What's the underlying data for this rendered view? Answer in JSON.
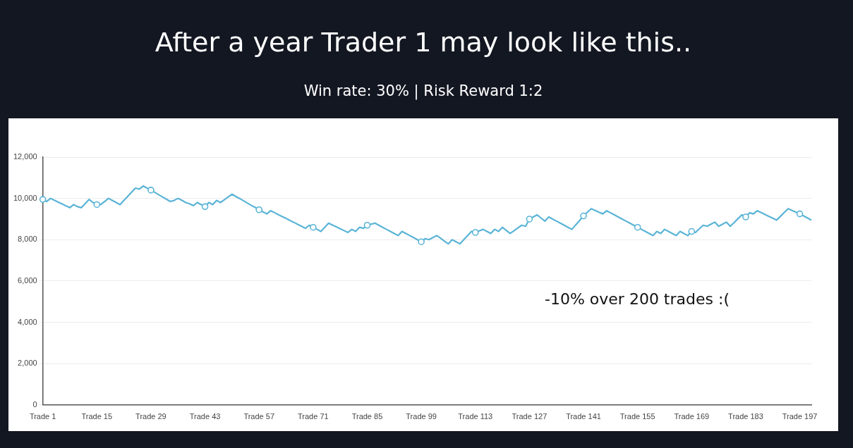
{
  "chart_data": {
    "type": "line",
    "title": "After a year Trader 1 may look like this..",
    "subtitle": "Win rate: 30% | Risk Reward 1:2",
    "annotations": [
      "-10% over 200 trades :("
    ],
    "categories": [
      "Trade 1",
      null,
      null,
      null,
      null,
      null,
      null,
      null,
      null,
      null,
      null,
      null,
      null,
      null,
      "Trade 15",
      null,
      null,
      null,
      null,
      null,
      null,
      null,
      null,
      null,
      null,
      null,
      null,
      null,
      "Trade 29",
      null,
      null,
      null,
      null,
      null,
      null,
      null,
      null,
      null,
      null,
      null,
      null,
      null,
      "Trade 43",
      null,
      null,
      null,
      null,
      null,
      null,
      null,
      null,
      null,
      null,
      null,
      null,
      null,
      "Trade 57",
      null,
      null,
      null,
      null,
      null,
      null,
      null,
      null,
      null,
      null,
      null,
      null,
      null,
      "Trade 71",
      null,
      null,
      null,
      null,
      null,
      null,
      null,
      null,
      null,
      null,
      null,
      null,
      null,
      "Trade 85",
      null,
      null,
      null,
      null,
      null,
      null,
      null,
      null,
      null,
      null,
      null,
      null,
      null,
      "Trade 99",
      null,
      null,
      null,
      null,
      null,
      null,
      null,
      null,
      null,
      null,
      null,
      null,
      null,
      "Trade 113",
      null,
      null,
      null,
      null,
      null,
      null,
      null,
      null,
      null,
      null,
      null,
      null,
      null,
      "Trade 127",
      null,
      null,
      null,
      null,
      null,
      null,
      null,
      null,
      null,
      null,
      null,
      null,
      null,
      "Trade 141",
      null,
      null,
      null,
      null,
      null,
      null,
      null,
      null,
      null,
      null,
      null,
      null,
      null,
      "Trade 155",
      null,
      null,
      null,
      null,
      null,
      null,
      null,
      null,
      null,
      null,
      null,
      null,
      null,
      "Trade 169",
      null,
      null,
      null,
      null,
      null,
      null,
      null,
      null,
      null,
      null,
      null,
      null,
      null,
      "Trade 183",
      null,
      null,
      null,
      null,
      null,
      null,
      null,
      null,
      null,
      null,
      null,
      null,
      null,
      "Trade 197",
      null,
      null,
      null
    ],
    "series": [
      {
        "color": "#5ab4d6",
        "marker": "none",
        "values": [
          9950,
          9850,
          10000,
          9910,
          9820,
          9730,
          9640,
          9550,
          9700,
          9600,
          9550,
          9750,
          9950,
          9800,
          9700,
          9700,
          9850,
          10000,
          9900,
          9800,
          9700,
          9900,
          10100,
          10300,
          10500,
          10450,
          10600,
          10500,
          10400,
          10290,
          10180,
          10070,
          9960,
          9850,
          9900,
          10000,
          9910,
          9800,
          9740,
          9650,
          9800,
          9700,
          9600,
          9800,
          9700,
          9900,
          9800,
          9930,
          10070,
          10200,
          10090,
          9990,
          9880,
          9770,
          9660,
          9560,
          9450,
          9350,
          9250,
          9400,
          9310,
          9210,
          9120,
          9030,
          8930,
          8840,
          8740,
          8650,
          8550,
          8700,
          8600,
          8500,
          8400,
          8600,
          8800,
          8710,
          8620,
          8530,
          8440,
          8350,
          8500,
          8400,
          8600,
          8550,
          8700,
          8750,
          8800,
          8700,
          8600,
          8500,
          8400,
          8300,
          8200,
          8400,
          8300,
          8200,
          8100,
          8000,
          7900,
          8050,
          8000,
          8100,
          8200,
          8070,
          7930,
          7800,
          8000,
          7900,
          7800,
          8000,
          8200,
          8400,
          8350,
          8430,
          8500,
          8400,
          8300,
          8500,
          8400,
          8600,
          8450,
          8300,
          8430,
          8570,
          8700,
          8650,
          9000,
          9100,
          9200,
          9050,
          8900,
          9100,
          9000,
          8900,
          8800,
          8700,
          8600,
          8500,
          8720,
          8930,
          9150,
          9330,
          9500,
          9420,
          9330,
          9250,
          9400,
          9300,
          9200,
          9100,
          9000,
          8900,
          8800,
          8700,
          8600,
          8500,
          8400,
          8300,
          8200,
          8400,
          8300,
          8500,
          8400,
          8300,
          8200,
          8400,
          8300,
          8200,
          8400,
          8350,
          8530,
          8700,
          8650,
          8750,
          8850,
          8650,
          8750,
          8850,
          8650,
          8830,
          9020,
          9200,
          9100,
          9300,
          9250,
          9400,
          9310,
          9220,
          9130,
          9040,
          8950,
          9130,
          9320,
          9500,
          9420,
          9330,
          9250,
          9150,
          9050,
          8950
        ]
      },
      {
        "type": "scatter",
        "color": "#5ab4d6",
        "marker": "circle",
        "x": [
          "Trade 1",
          "Trade 15",
          "Trade 29",
          "Trade 43",
          "Trade 57",
          "Trade 71",
          "Trade 85",
          "Trade 99",
          "Trade 113",
          "Trade 127",
          "Trade 141",
          "Trade 155",
          "Trade 169",
          "Trade 183",
          "Trade 197"
        ],
        "values": [
          9950,
          9700,
          10400,
          9600,
          9450,
          8600,
          8700,
          7900,
          8350,
          9000,
          9150,
          8600,
          8400,
          9100,
          9250
        ]
      }
    ],
    "ylim": [
      0,
      12000
    ],
    "yticks": [
      0,
      {
        "value": 2000,
        "label": "2,000"
      },
      {
        "value": 4000,
        "label": "4,000"
      },
      {
        "value": 6000,
        "label": "6,000"
      },
      {
        "value": 8000,
        "label": "8,000"
      },
      {
        "value": 10000,
        "label": "10,000"
      },
      {
        "value": 12000,
        "label": "12,000"
      }
    ],
    "grid": "y",
    "legend": false
  }
}
